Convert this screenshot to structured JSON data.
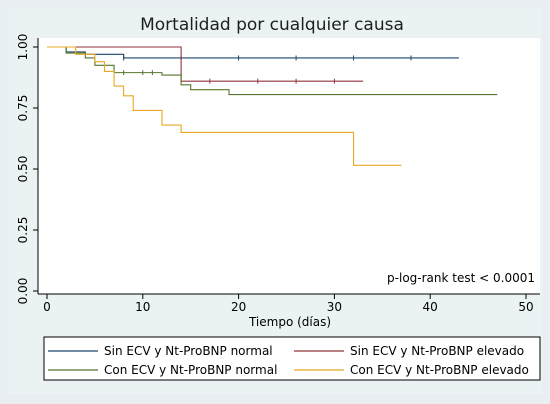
{
  "chart_data": {
    "type": "line",
    "step": true,
    "title": "Mortalidad por cualquier causa",
    "xlabel": "Tiempo (días)",
    "ylabel": "",
    "xlim": [
      0,
      50
    ],
    "ylim": [
      0,
      1
    ],
    "x_ticks": [
      0,
      10,
      20,
      30,
      40,
      50
    ],
    "y_ticks": [
      "0.00",
      "0.25",
      "0.50",
      "0.75",
      "1.00"
    ],
    "grid": false,
    "annotation": "p-log-rank test < 0.0001",
    "legend_position": "bottom",
    "series": [
      {
        "name": "Sin ECV y Nt-ProBNP normal",
        "color": "#1a476f",
        "points": [
          [
            0,
            1.0
          ],
          [
            2,
            0.98
          ],
          [
            4,
            0.97
          ],
          [
            8,
            0.955
          ],
          [
            43,
            0.955
          ]
        ],
        "censored": [
          8,
          14,
          20,
          26,
          32,
          38
        ]
      },
      {
        "name": "Sin ECV y Nt-ProBNP elevado",
        "color": "#90353b",
        "points": [
          [
            0,
            1.0
          ],
          [
            14,
            0.86
          ],
          [
            33,
            0.86
          ]
        ],
        "censored": [
          17,
          22,
          26,
          30
        ]
      },
      {
        "name": "Con ECV y Nt-ProBNP normal",
        "color": "#55752f",
        "points": [
          [
            0,
            1.0
          ],
          [
            2,
            0.975
          ],
          [
            4,
            0.955
          ],
          [
            5,
            0.925
          ],
          [
            7,
            0.895
          ],
          [
            12,
            0.885
          ],
          [
            14,
            0.845
          ],
          [
            15,
            0.825
          ],
          [
            19,
            0.805
          ],
          [
            47,
            0.805
          ]
        ],
        "censored": [
          8,
          10,
          11
        ]
      },
      {
        "name": "Con ECV y Nt-ProBNP elevado",
        "color": "#e8a823",
        "points": [
          [
            0,
            1.0
          ],
          [
            3,
            0.97
          ],
          [
            5,
            0.94
          ],
          [
            6,
            0.9
          ],
          [
            7,
            0.84
          ],
          [
            8,
            0.8
          ],
          [
            9,
            0.74
          ],
          [
            12,
            0.68
          ],
          [
            14,
            0.65
          ],
          [
            32,
            0.515
          ],
          [
            37,
            0.515
          ]
        ],
        "censored": []
      }
    ]
  }
}
